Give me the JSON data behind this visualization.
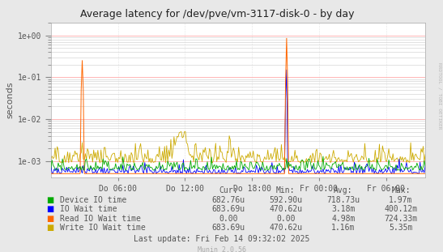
{
  "title": "Average latency for /dev/pve/vm-3117-disk-0 - by day",
  "ylabel": "seconds",
  "bg_color": "#e8e8e8",
  "plot_bg_color": "#ffffff",
  "grid_color_major": "#ffaaaa",
  "grid_color_minor": "#cccccc",
  "series": {
    "device_io": {
      "color": "#00aa00",
      "label": "Device IO time"
    },
    "io_wait": {
      "color": "#0000ff",
      "label": "IO Wait time"
    },
    "read_io": {
      "color": "#ff6600",
      "label": "Read IO Wait time"
    },
    "write_io": {
      "color": "#ccaa00",
      "label": "Write IO Wait time"
    }
  },
  "xtick_labels": [
    "Do 06:00",
    "Do 12:00",
    "Do 18:00",
    "Fr 00:00",
    "Fr 06:00"
  ],
  "xtick_positions": [
    0.179,
    0.358,
    0.537,
    0.716,
    0.895
  ],
  "ylim_min": 0.0004,
  "ylim_max": 2.0,
  "ytick_labels": [
    "1e-03",
    "1e-02",
    "1e-01",
    "1e+00"
  ],
  "ytick_values": [
    0.001,
    0.01,
    0.1,
    1.0
  ],
  "legend_table": {
    "headers": [
      "Cur:",
      "Min:",
      "Avg:",
      "Max:"
    ],
    "rows": [
      [
        "Device IO time",
        "682.76u",
        "592.90u",
        "718.73u",
        "1.97m"
      ],
      [
        "IO Wait time",
        "683.69u",
        "470.62u",
        "3.18m",
        "400.12m"
      ],
      [
        "Read IO Wait time",
        "0.00",
        "0.00",
        "4.98m",
        "724.33m"
      ],
      [
        "Write IO Wait time",
        "683.69u",
        "470.62u",
        "1.16m",
        "5.35m"
      ]
    ]
  },
  "footer": "Last update: Fri Feb 14 09:32:02 2025",
  "munin_version": "Munin 2.0.56",
  "watermark": "RRDTOOL / TOBI OETIKER"
}
